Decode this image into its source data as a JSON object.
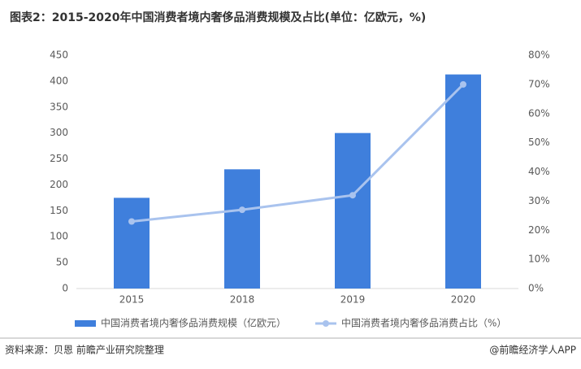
{
  "chart_data": {
    "type": "bar",
    "title": "图表2：2015-2020年中国消费者境内奢侈品消费规模及占比(单位：亿欧元，%)",
    "categories": [
      "2015",
      "2018",
      "2019",
      "2020"
    ],
    "series": [
      {
        "name": "中国消费者境内奢侈品消费规模（亿欧元）",
        "type": "bar",
        "color": "#3f7fdc",
        "values": [
          175,
          230,
          300,
          413
        ]
      },
      {
        "name": "中国消费者境内奢侈品消费占比（%）",
        "type": "line",
        "axis": "y2",
        "color": "#a9c3ee",
        "values": [
          23,
          27,
          32,
          70
        ]
      }
    ],
    "ylim": [
      0,
      450
    ],
    "yticks": [
      0,
      50,
      100,
      150,
      200,
      250,
      300,
      350,
      400,
      450
    ],
    "y2lim": [
      0,
      80
    ],
    "y2ticks": [
      {
        "value": 0,
        "label": "0%"
      },
      {
        "value": 10,
        "label": "10%"
      },
      {
        "value": 20,
        "label": "20%"
      },
      {
        "value": 30,
        "label": "30%"
      },
      {
        "value": 40,
        "label": "40%"
      },
      {
        "value": 50,
        "label": "50%"
      },
      {
        "value": 60,
        "label": "60%"
      },
      {
        "value": 70,
        "label": "70%"
      },
      {
        "value": 80,
        "label": "80%"
      }
    ],
    "source": "资料来源：贝恩 前瞻产业研究院整理",
    "credit": "@前瞻经济学人APP"
  }
}
